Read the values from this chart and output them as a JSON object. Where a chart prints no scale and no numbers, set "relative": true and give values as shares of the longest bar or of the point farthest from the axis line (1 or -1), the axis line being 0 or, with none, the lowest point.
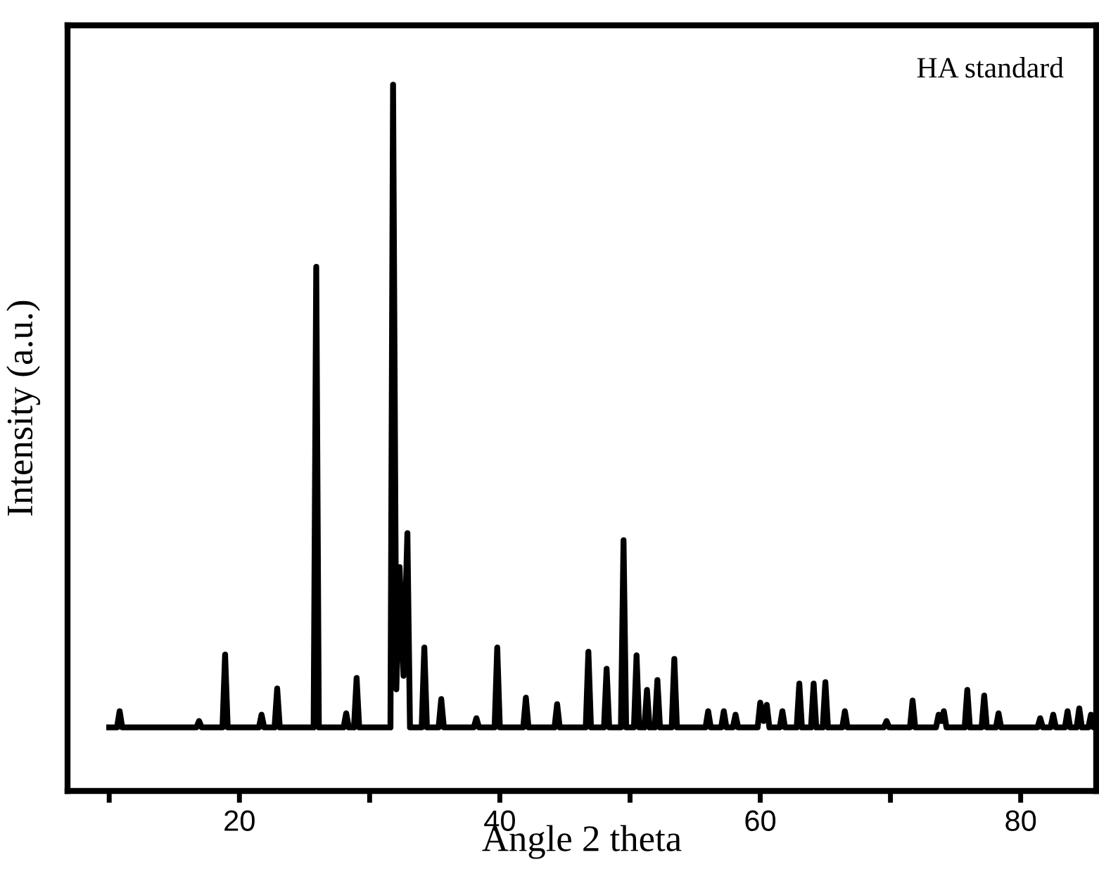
{
  "chart_data": {
    "type": "line",
    "relative": true,
    "xlabel": "Angle 2 theta",
    "ylabel": "Intensity (a.u.)",
    "annotations": [
      "HA standard"
    ],
    "xlim": [
      6.8,
      85.8
    ],
    "xticks": [
      {
        "value": 10,
        "label": null
      },
      20,
      {
        "value": 30,
        "label": null
      },
      40,
      {
        "value": 50,
        "label": null
      },
      60,
      {
        "value": 70,
        "label": null
      },
      80
    ],
    "tick_labels": "x",
    "grid": false,
    "marker": "none",
    "line_style": "solid",
    "x": [
      10.0,
      10.6,
      10.8,
      11.0,
      16.7,
      16.9,
      17.1,
      18.7,
      18.9,
      19.1,
      21.5,
      21.7,
      21.9,
      22.7,
      22.9,
      23.1,
      25.7,
      25.9,
      26.1,
      28.0,
      28.2,
      28.4,
      28.8,
      29.0,
      29.2,
      31.6,
      31.8,
      32.05,
      32.3,
      32.6,
      32.9,
      33.1,
      34.0,
      34.2,
      34.4,
      35.3,
      35.5,
      35.7,
      38.0,
      38.2,
      38.4,
      39.6,
      39.8,
      40.0,
      41.8,
      42.0,
      42.2,
      44.2,
      44.4,
      44.6,
      46.6,
      46.8,
      47.0,
      48.0,
      48.2,
      48.4,
      49.3,
      49.5,
      49.7,
      50.3,
      50.5,
      50.7,
      51.1,
      51.3,
      51.5,
      51.9,
      52.1,
      52.3,
      53.2,
      53.4,
      53.6,
      55.8,
      56.0,
      56.2,
      57.0,
      57.2,
      57.4,
      57.9,
      58.1,
      58.3,
      59.8,
      60.0,
      60.25,
      60.5,
      60.7,
      61.5,
      61.7,
      61.9,
      62.8,
      63.0,
      63.2,
      63.9,
      64.1,
      64.3,
      64.8,
      65.0,
      65.2,
      66.3,
      66.5,
      66.7,
      69.5,
      69.7,
      69.9,
      71.5,
      71.7,
      71.9,
      73.5,
      73.7,
      73.9,
      74.1,
      74.3,
      75.7,
      75.9,
      76.1,
      77.0,
      77.2,
      77.4,
      78.1,
      78.3,
      78.5,
      81.3,
      81.5,
      81.7,
      82.3,
      82.5,
      82.7,
      83.4,
      83.6,
      83.8,
      84.3,
      84.5,
      84.7,
      85.2,
      85.4,
      85.6,
      85.8
    ],
    "series": [
      {
        "color": "#000000",
        "values": [
          0.09,
          0.09,
          0.113,
          0.09,
          0.09,
          0.099,
          0.09,
          0.09,
          0.193,
          0.09,
          0.09,
          0.108,
          0.09,
          0.09,
          0.145,
          0.09,
          0.09,
          0.742,
          0.09,
          0.09,
          0.11,
          0.09,
          0.09,
          0.16,
          0.09,
          0.09,
          1,
          0.144,
          0.317,
          0.163,
          0.365,
          0.09,
          0.09,
          0.203,
          0.09,
          0.09,
          0.13,
          0.09,
          0.09,
          0.103,
          0.09,
          0.09,
          0.203,
          0.09,
          0.09,
          0.132,
          0.09,
          0.09,
          0.123,
          0.09,
          0.09,
          0.197,
          0.09,
          0.09,
          0.173,
          0.09,
          0.09,
          0.355,
          0.09,
          0.09,
          0.192,
          0.09,
          0.09,
          0.143,
          0.09,
          0.09,
          0.157,
          0.09,
          0.09,
          0.187,
          0.09,
          0.09,
          0.113,
          0.09,
          0.09,
          0.113,
          0.09,
          0.09,
          0.108,
          0.09,
          0.09,
          0.125,
          0.099,
          0.122,
          0.09,
          0.09,
          0.113,
          0.09,
          0.09,
          0.152,
          0.09,
          0.09,
          0.152,
          0.09,
          0.09,
          0.154,
          0.09,
          0.09,
          0.113,
          0.09,
          0.09,
          0.099,
          0.09,
          0.09,
          0.128,
          0.09,
          0.09,
          0.108,
          0.099,
          0.113,
          0.09,
          0.09,
          0.143,
          0.09,
          0.09,
          0.135,
          0.09,
          0.09,
          0.11,
          0.09,
          0.09,
          0.103,
          0.09,
          0.09,
          0.108,
          0.09,
          0.09,
          0.113,
          0.09,
          0.09,
          0.117,
          0.09,
          0.09,
          0.108,
          0.09,
          0.09
        ]
      }
    ]
  }
}
